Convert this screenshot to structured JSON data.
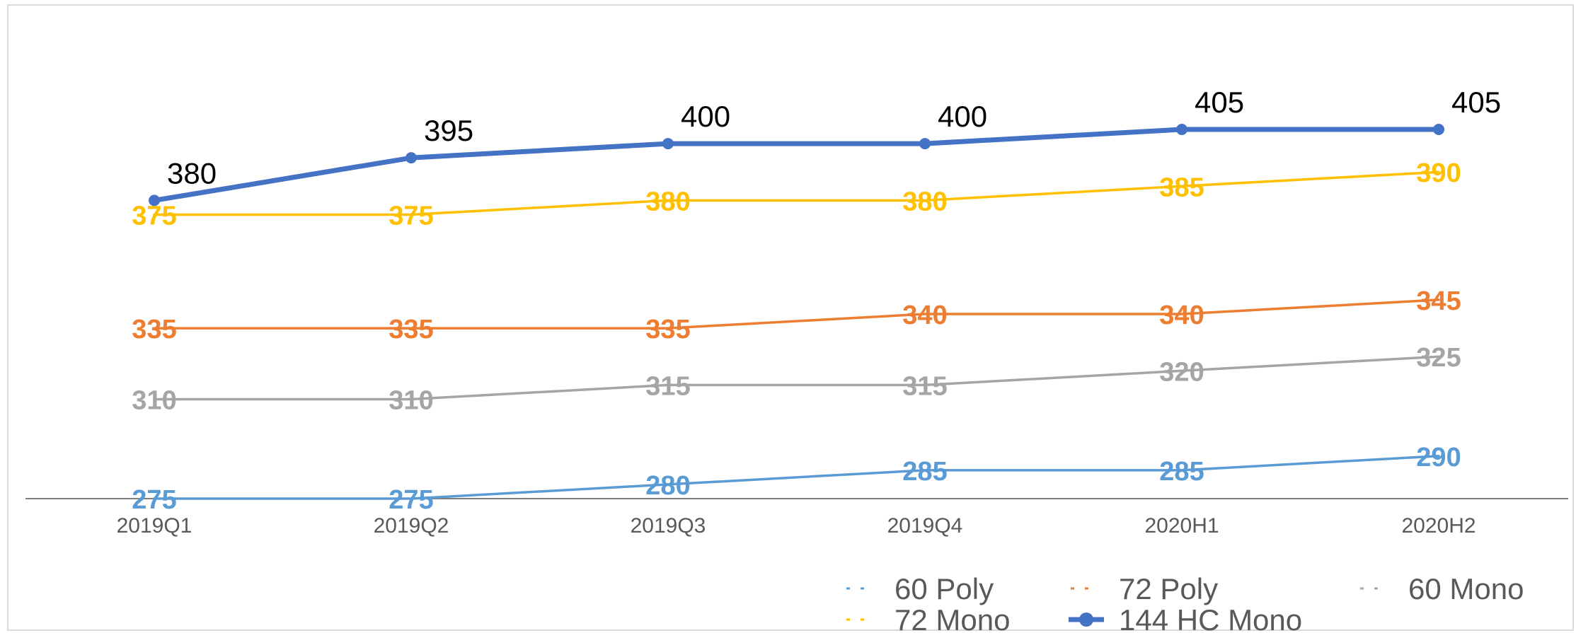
{
  "chart_data": {
    "type": "line",
    "categories": [
      "2019Q1",
      "2019Q2",
      "2019Q3",
      "2019Q4",
      "2020H1",
      "2020H2"
    ],
    "series": [
      {
        "name": "60 Poly",
        "values": [
          275,
          275,
          280,
          285,
          285,
          290
        ],
        "color": "#5b9bd5",
        "markers": false,
        "bold_labels": true
      },
      {
        "name": "72 Poly",
        "values": [
          335,
          335,
          335,
          340,
          340,
          345
        ],
        "color": "#ed7d31",
        "markers": false,
        "bold_labels": true
      },
      {
        "name": "60 Mono",
        "values": [
          310,
          310,
          315,
          315,
          320,
          325
        ],
        "color": "#a5a5a5",
        "markers": false,
        "bold_labels": true
      },
      {
        "name": "72 Mono",
        "values": [
          375,
          375,
          380,
          380,
          385,
          390
        ],
        "color": "#ffc000",
        "markers": false,
        "bold_labels": true
      },
      {
        "name": "144 HC Mono",
        "values": [
          380,
          395,
          400,
          400,
          405,
          405
        ],
        "color": "#4472c4",
        "markers": true,
        "bold_labels": false,
        "label_color": "#000000"
      }
    ],
    "ylim": [
      275,
      420
    ],
    "grid": false,
    "legend_position": "bottom-right",
    "title": "",
    "xlabel": "",
    "ylabel": ""
  }
}
